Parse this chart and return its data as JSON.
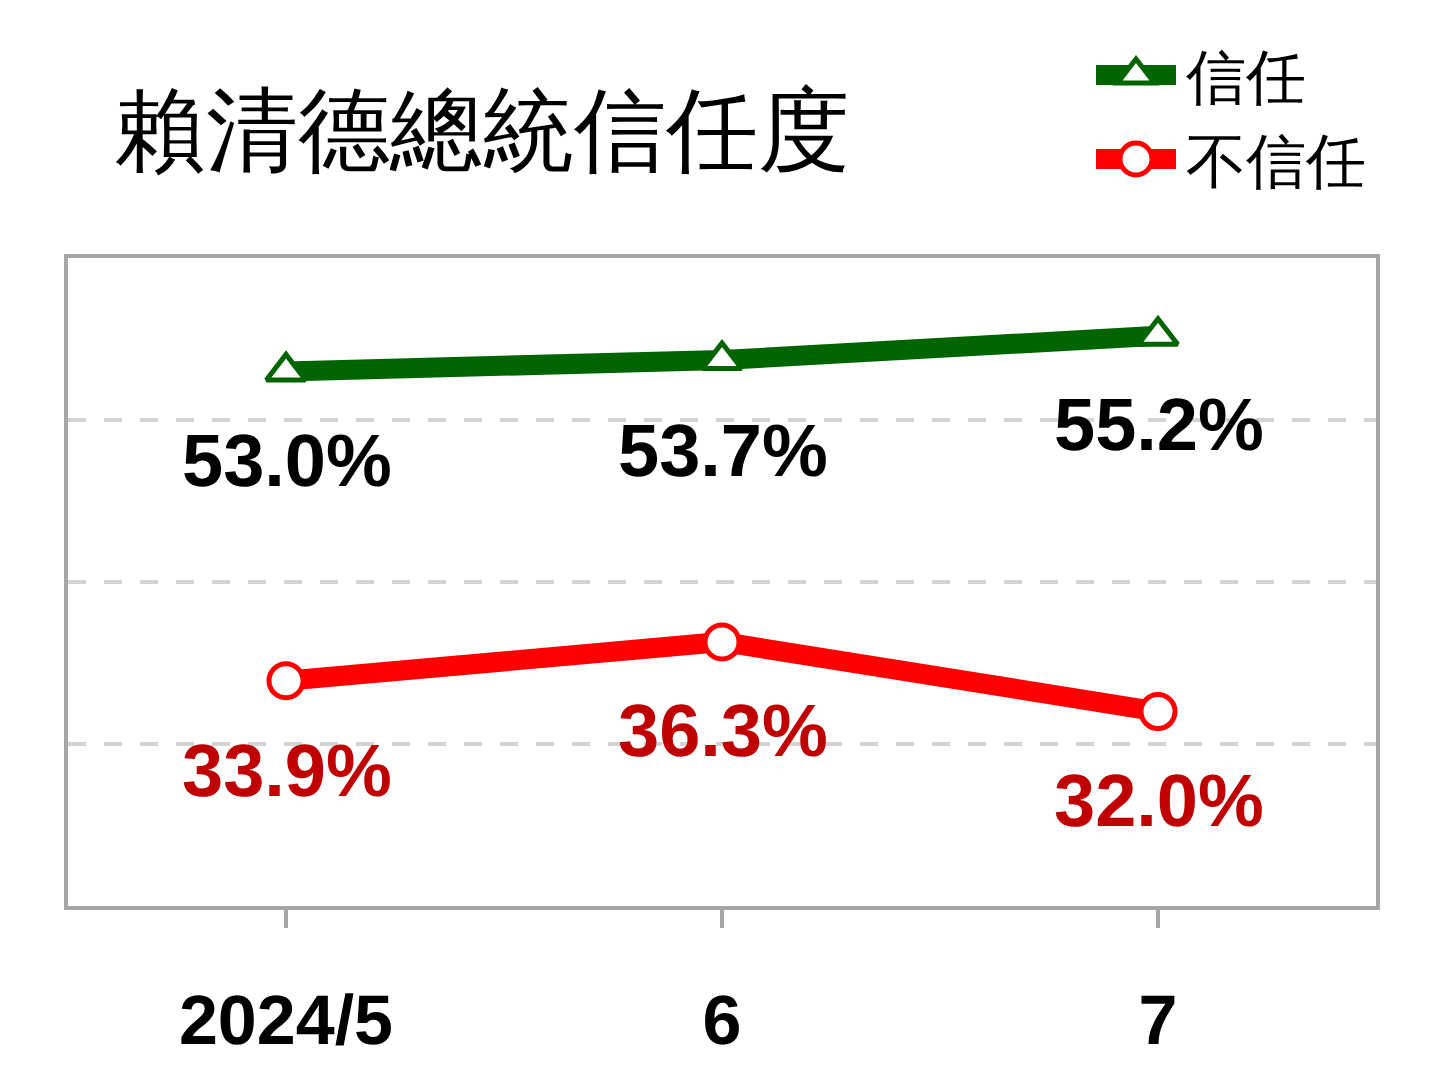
{
  "chart_data": {
    "type": "line",
    "title": "賴清德總統信任度",
    "categories": [
      "2024/5",
      "6",
      "7"
    ],
    "series": [
      {
        "name": "信任",
        "color": "#006400",
        "marker": "triangle",
        "values": [
          53.0,
          53.7,
          55.2
        ],
        "value_labels": [
          "53.0%",
          "53.7%",
          "55.2%"
        ]
      },
      {
        "name": "不信任",
        "color": "#ff0000",
        "marker": "circle",
        "values": [
          33.9,
          36.3,
          32.0
        ],
        "value_labels": [
          "33.9%",
          "36.3%",
          "32.0%"
        ]
      }
    ],
    "ylim": [
      20,
      60
    ],
    "yticks": [
      {
        "value": 30,
        "label": null
      },
      {
        "value": 40,
        "label": null
      },
      {
        "value": 50,
        "label": null
      }
    ],
    "grid": "y",
    "legend": "top right",
    "tick_labels": "x"
  }
}
